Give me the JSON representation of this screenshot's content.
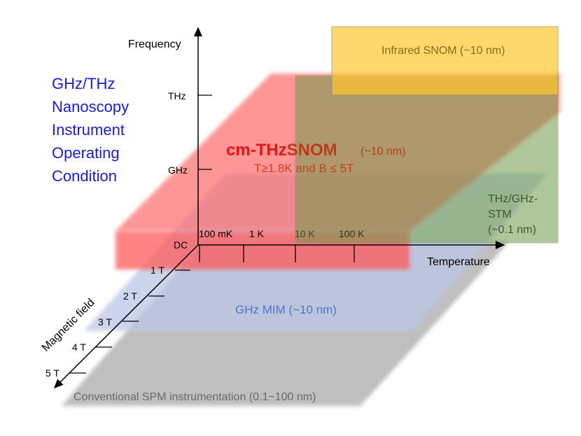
{
  "title_lines": [
    "GHz/THz",
    "Nanoscopy",
    "Instrument",
    "Operating",
    "Condition"
  ],
  "axes": {
    "frequency": {
      "label": "Frequency",
      "ticks": [
        "THz",
        "GHz",
        "DC"
      ]
    },
    "temperature": {
      "label": "Temperature",
      "ticks": [
        "100 mK",
        "1 K",
        "10 K",
        "100 K"
      ]
    },
    "magnetic": {
      "label": "Magnetic field",
      "ticks": [
        "1 T",
        "2 T",
        "3 T",
        "4 T",
        "5 T"
      ]
    }
  },
  "regions": {
    "infrared_snom": {
      "label": "Infrared SNOM (~10 nm)",
      "color": "#f5c542"
    },
    "cm_thz_snom": {
      "label_a": "cm-THz",
      "label_b": "SNOM",
      "resolution": "(~10 nm)",
      "condition": "T≥1.8K and B ≤ 5T",
      "color": "#ff6b6b"
    },
    "thz_stm": {
      "lines": [
        "THz/GHz-",
        "STM",
        "(~0.1 nm)"
      ],
      "color": "#7a9a4a"
    },
    "ghz_mim": {
      "label": "GHz MIM (~10 nm)",
      "color": "#4a78d0"
    },
    "conventional_spm": {
      "label": "Conventional SPM instrumentation (0.1~100 nm)",
      "color": "#9a9a9a"
    }
  }
}
